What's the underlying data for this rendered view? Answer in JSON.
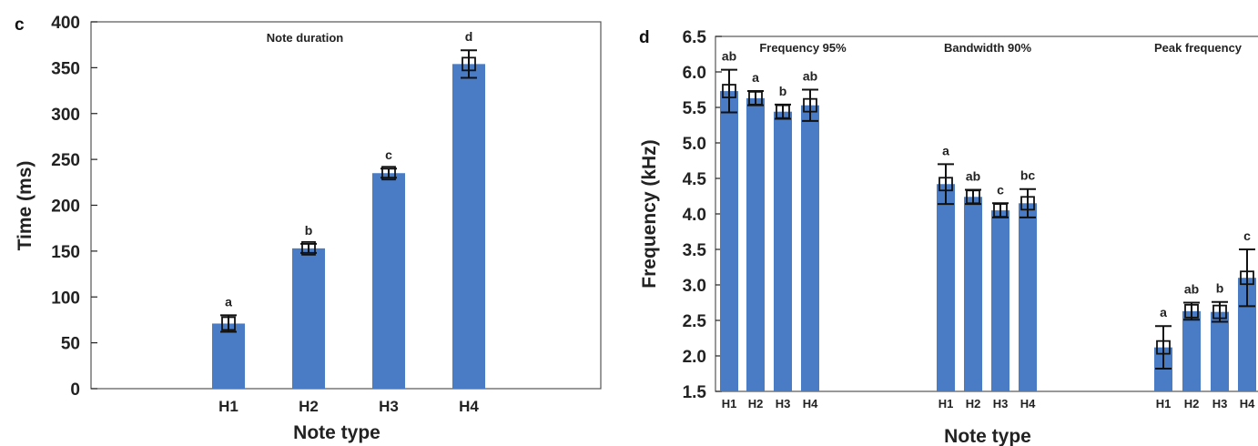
{
  "chart_data": [
    {
      "panel": "c",
      "type": "bar",
      "title": "Note duration",
      "xlabel": "Note type",
      "ylabel": "Time (ms)",
      "ylim": [
        0,
        400
      ],
      "yticks": [
        0,
        50,
        100,
        150,
        200,
        250,
        300,
        350,
        400
      ],
      "categories": [
        "H1",
        "H2",
        "H3",
        "H4"
      ],
      "values": [
        71,
        153,
        235,
        354
      ],
      "errors": [
        9,
        5,
        5,
        15
      ],
      "sig_labels": [
        "a",
        "b",
        "c",
        "d"
      ]
    },
    {
      "panel": "d",
      "type": "bar",
      "xlabel": "Note type",
      "ylabel": "Frequency (kHz)",
      "ylim": [
        1.5,
        6.5
      ],
      "yticks": [
        1.5,
        2.0,
        2.5,
        3.0,
        3.5,
        4.0,
        4.5,
        5.0,
        5.5,
        6.0,
        6.5
      ],
      "groups": [
        {
          "title": "Frequency 95%",
          "categories": [
            "H1",
            "H2",
            "H3",
            "H4"
          ],
          "values": [
            5.73,
            5.63,
            5.44,
            5.53
          ],
          "errors": [
            0.3,
            0.1,
            0.1,
            0.22
          ],
          "sig_labels": [
            "ab",
            "a",
            "b",
            "ab"
          ]
        },
        {
          "title": "Bandwidth 90%",
          "categories": [
            "H1",
            "H2",
            "H3",
            "H4"
          ],
          "values": [
            4.42,
            4.24,
            4.05,
            4.15
          ],
          "errors": [
            0.28,
            0.1,
            0.1,
            0.2
          ],
          "sig_labels": [
            "a",
            "ab",
            "c",
            "bc"
          ]
        },
        {
          "title": "Peak frequency",
          "categories": [
            "H1",
            "H2",
            "H3",
            "H4"
          ],
          "values": [
            2.12,
            2.63,
            2.62,
            3.1
          ],
          "errors": [
            0.3,
            0.12,
            0.14,
            0.4
          ],
          "sig_labels": [
            "a",
            "ab",
            "b",
            "c"
          ]
        }
      ]
    }
  ]
}
